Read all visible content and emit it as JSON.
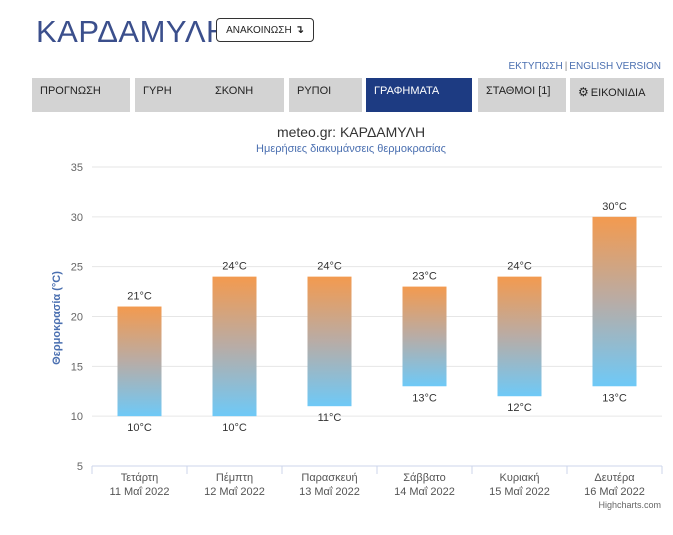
{
  "header": {
    "title": "ΚΑΡΔΑΜΥΛΗ",
    "announce_label": "ΑΝΑΚΟΙΝΩΣΗ",
    "announce_arrow": "↴",
    "print_link": "ΕΚΤΥΠΩΣΗ",
    "separator": "|",
    "english_link": "ENGLISH VERSION"
  },
  "nav": {
    "tabs": [
      {
        "label": "ΠΡΟΓΝΩΣΗ"
      },
      {
        "label": "ΓΥΡΗ"
      },
      {
        "label": "ΣΚΟΝΗ"
      },
      {
        "label": "ΡΥΠΟΙ"
      },
      {
        "label": "ΓΡΑΦΗΜΑΤΑ"
      },
      {
        "label": "ΣΤΑΘΜΟΙ [1]"
      },
      {
        "label": "ΕΙΚΟΝΙΔΙΑ",
        "icon": "gear-icon"
      }
    ],
    "active_index": 4,
    "active_color": "#1d3b82"
  },
  "chart_data": {
    "type": "bar",
    "subtype": "columnrange",
    "title": "meteo.gr: ΚΑΡΔΑΜΥΛΗ",
    "subtitle": "Ημερήσιες διακυμάνσεις θερμοκρασίας",
    "ylabel": "Θερμοκρασία (°C)",
    "ylim": [
      5,
      35
    ],
    "yticks": [
      5,
      10,
      15,
      20,
      25,
      30,
      35
    ],
    "grid": true,
    "legend": "none",
    "unit": "°C",
    "categories": [
      {
        "day": "Τετάρτη",
        "date": "11 Μαΐ 2022"
      },
      {
        "day": "Πέμπτη",
        "date": "12 Μαΐ 2022"
      },
      {
        "day": "Παρασκευή",
        "date": "13 Μαΐ 2022"
      },
      {
        "day": "Σάββατο",
        "date": "14 Μαΐ 2022"
      },
      {
        "day": "Κυριακή",
        "date": "15 Μαΐ 2022"
      },
      {
        "day": "Δευτέρα",
        "date": "16 Μαΐ 2022"
      }
    ],
    "series": [
      {
        "low": [
          10,
          10,
          11,
          13,
          12,
          13
        ],
        "high": [
          21,
          24,
          24,
          23,
          24,
          30
        ]
      }
    ],
    "colors": {
      "high": "#f39a4f",
      "low": "#6ec9f7",
      "title": "#333333",
      "subtitle": "#4a6fb0",
      "ylabel": "#4a6fb0"
    },
    "credits": "Highcharts.com"
  }
}
